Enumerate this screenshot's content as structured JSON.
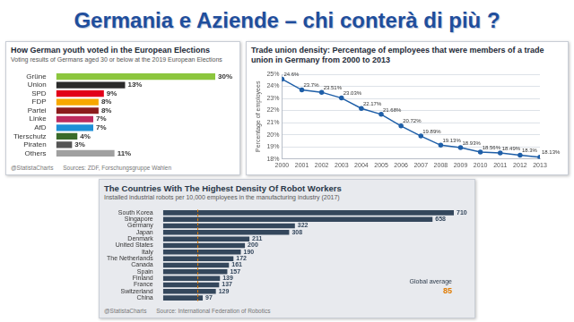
{
  "title": "Germania e Aziende – chi conterà di più ?",
  "chart_data": [
    {
      "type": "bar",
      "orientation": "horizontal",
      "title": "How German youth voted in the European Elections",
      "subtitle": "Voting results of Germans aged 30 or below at the 2019 European Elections",
      "categories": [
        "Grüne",
        "Union",
        "SPD",
        "FDP",
        "Partei",
        "Linke",
        "AfD",
        "Tierschutz",
        "Piraten",
        "Others"
      ],
      "values": [
        30,
        13,
        9,
        8,
        8,
        7,
        7,
        4,
        3,
        11
      ],
      "value_labels": [
        "30%",
        "13%",
        "9%",
        "8%",
        "8%",
        "7%",
        "7%",
        "4%",
        "3%",
        "11%"
      ],
      "colors": [
        "#8cc63e",
        "#2b2b2b",
        "#e2001a",
        "#f7a800",
        "#8b1c1c",
        "#be2b5e",
        "#1e90d8",
        "#3a6b2a",
        "#555555",
        "#a0a0a0"
      ],
      "xlim": [
        0,
        30
      ],
      "xticks": [],
      "tick_labels": "y",
      "data_labels": true,
      "grid": false,
      "credit": "@StatistaCharts",
      "source": "Sources: ZDF, Forschungsgruppe Wahlen"
    },
    {
      "type": "bar",
      "orientation": "horizontal",
      "title": "The Countries With The Highest Density Of Robot Workers",
      "subtitle": "Installed industrial robots per 10,000 employees in the manufacturing industry (2017)",
      "categories": [
        "South Korea",
        "Singapore",
        "Germany",
        "Japan",
        "Denmark",
        "United States",
        "Italy",
        "The Netherlands",
        "Canada",
        "Spain",
        "Finland",
        "France",
        "Switzerland",
        "China"
      ],
      "values": [
        710,
        658,
        322,
        308,
        211,
        200,
        190,
        172,
        161,
        157,
        139,
        137,
        129,
        97
      ],
      "color": "#34475c",
      "xlim": [
        0,
        710
      ],
      "xticks": [],
      "tick_labels": "y",
      "data_labels": true,
      "grid": false,
      "annotation": {
        "text": "Global average",
        "value": 85
      },
      "credit": "@StatistaCharts",
      "source": "Source: International Federation of Robotics"
    },
    {
      "type": "line",
      "title": "Trade union density: Percentage of employees that were members of a trade union in Germany from 2000 to 2013",
      "y_label": "Percentage of employees",
      "x": [
        2000,
        2001,
        2002,
        2003,
        2004,
        2005,
        2006,
        2007,
        2008,
        2009,
        2010,
        2011,
        2012,
        2013
      ],
      "values": [
        24.6,
        23.7,
        23.51,
        23.03,
        22.17,
        21.68,
        20.72,
        19.89,
        19.13,
        18.93,
        18.56,
        18.49,
        18.3,
        18.13
      ],
      "value_labels": [
        "24.6%",
        "23.7%",
        "23.51%",
        "23.03%",
        "22.17%",
        "21.68%",
        "20.72%",
        "19.89%",
        "19.13%",
        "18.93%",
        "18.56%",
        "18.49%",
        "18.3%",
        "18.13%"
      ],
      "color": "#1f5fa8",
      "marker": "circle",
      "line_style": "solid",
      "xlim": [
        2000,
        2013
      ],
      "xticks": [
        2000,
        2001,
        2002,
        2003,
        2004,
        2005,
        2006,
        2007,
        2008,
        2009,
        2010,
        2011,
        2012,
        2013
      ],
      "ylim": [
        18,
        25
      ],
      "yticks": [
        {
          "value": 18,
          "label": "18%"
        },
        {
          "value": 19,
          "label": "19%"
        },
        {
          "value": 20,
          "label": "20%"
        },
        {
          "value": 21,
          "label": "21%"
        },
        {
          "value": 22,
          "label": "22%"
        },
        {
          "value": 23,
          "label": "23%"
        },
        {
          "value": 24,
          "label": "24%"
        },
        {
          "value": 25,
          "label": "25%"
        }
      ],
      "grid": true,
      "data_labels": true
    }
  ]
}
